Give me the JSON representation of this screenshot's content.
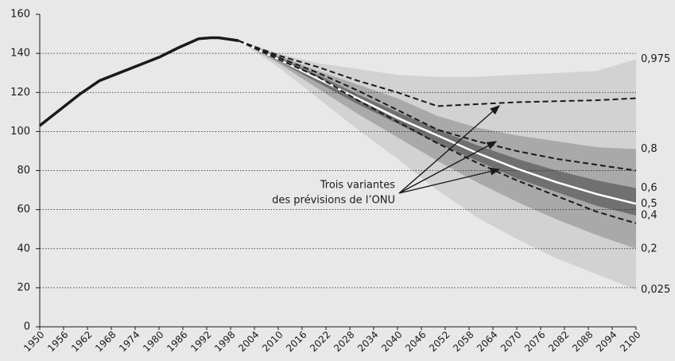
{
  "chart_data": {
    "type": "line",
    "xlim": [
      1950,
      2100
    ],
    "xticks": [
      1950,
      1956,
      1962,
      1968,
      1974,
      1980,
      1986,
      1992,
      1998,
      2004,
      2010,
      2016,
      2022,
      2028,
      2034,
      2040,
      2046,
      2052,
      2058,
      2064,
      2070,
      2076,
      2082,
      2088,
      2094,
      2100
    ],
    "ylim": [
      0,
      160
    ],
    "yticks": [
      0,
      20,
      40,
      60,
      80,
      100,
      120,
      140,
      160
    ],
    "grid": true,
    "history": {
      "color": "#1a1a1a",
      "x": [
        1950,
        1955,
        1960,
        1965,
        1970,
        1975,
        1980,
        1985,
        1990,
        1993,
        1995,
        2000
      ],
      "values": [
        103,
        111,
        119,
        126,
        130,
        134,
        138,
        143,
        147.5,
        148,
        148,
        146.5
      ]
    },
    "projection_x": [
      2000,
      2010,
      2020,
      2030,
      2040,
      2050,
      2060,
      2070,
      2080,
      2090,
      2100
    ],
    "quantiles": [
      {
        "name": "0,975",
        "values": [
          146.5,
          140,
          135,
          132,
          129,
          128,
          128,
          129,
          130,
          131,
          137
        ]
      },
      {
        "name": "0,8",
        "values": [
          146.5,
          139,
          131,
          124,
          117,
          108,
          102,
          98,
          95,
          92,
          91
        ]
      },
      {
        "name": "0,6",
        "values": [
          146.5,
          138,
          129,
          119,
          110,
          101,
          93,
          86,
          80,
          75,
          71
        ]
      },
      {
        "name": "0,5",
        "values": [
          146.5,
          137,
          127,
          117,
          107,
          98,
          89,
          81,
          74,
          68,
          63
        ]
      },
      {
        "name": "0,4",
        "values": [
          146.5,
          136,
          125,
          114,
          104,
          94,
          85,
          76,
          69,
          62,
          57
        ]
      },
      {
        "name": "0,2",
        "values": [
          146.5,
          135,
          122,
          109,
          97,
          85,
          74,
          64,
          55,
          47,
          40
        ]
      },
      {
        "name": "0,025",
        "values": [
          146.5,
          133,
          117,
          101,
          86,
          70,
          56,
          45,
          35,
          27,
          19
        ]
      }
    ],
    "fill_colors": [
      "#d2d2d2",
      "#a9a9a9",
      "#707070"
    ],
    "median_color": "#ffffff",
    "variants": [
      {
        "color": "#1a1a1a",
        "values": [
          146.5,
          139,
          133,
          126,
          120,
          113,
          114,
          115,
          115.5,
          116,
          117
        ]
      },
      {
        "color": "#1a1a1a",
        "values": [
          146.5,
          138,
          130,
          121,
          111,
          101,
          95,
          90,
          86,
          83,
          80
        ]
      },
      {
        "color": "#1a1a1a",
        "values": [
          146.5,
          137,
          128,
          116,
          105,
          94,
          84,
          75,
          67,
          59,
          53
        ]
      }
    ],
    "annotation": [
      "Trois variantes",
      "des prévisions de l’ONU"
    ]
  }
}
